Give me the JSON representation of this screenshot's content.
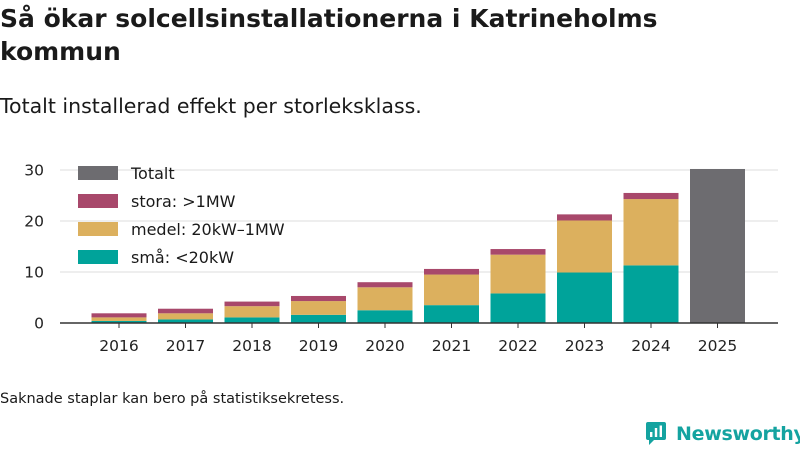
{
  "title": "Så ökar solcellsinstallationerna i Katrineholms kommun",
  "subtitle": "Totalt installerad effekt per storleksklass.",
  "note": "Saknade staplar kan bero på statistiksekretess.",
  "brand": {
    "name": "Newsworthy",
    "icon": "newsworthy-logo-icon"
  },
  "colors": {
    "sma": "#00a39a",
    "medel": "#dcb05e",
    "stora": "#a8486b",
    "totalt": "#6d6c70",
    "grid": "#dddddd",
    "axis": "#333333",
    "brand": "#14a3a0"
  },
  "chart_data": {
    "type": "bar",
    "stacked": true,
    "title": "Så ökar solcellsinstallationerna i Katrineholms kommun",
    "subtitle": "Totalt installerad effekt per storleksklass.",
    "xlabel": "",
    "ylabel": "",
    "ylim": [
      0,
      30
    ],
    "yticks": [
      0,
      10,
      20,
      30
    ],
    "grid": true,
    "legend_position": "top-left",
    "categories": [
      "2016",
      "2017",
      "2018",
      "2019",
      "2020",
      "2021",
      "2022",
      "2023",
      "2024",
      "2025"
    ],
    "series": [
      {
        "name": "Totalt",
        "key": "totalt",
        "values": [
          null,
          null,
          null,
          null,
          null,
          null,
          null,
          null,
          null,
          30.2
        ]
      },
      {
        "name": "stora: >1MW",
        "key": "stora",
        "values": [
          0.8,
          0.9,
          0.9,
          1.0,
          1.0,
          1.1,
          1.1,
          1.2,
          1.2,
          null
        ]
      },
      {
        "name": "medel: 20kW–1MW",
        "key": "medel",
        "values": [
          0.7,
          1.2,
          2.2,
          2.7,
          4.5,
          6.0,
          7.6,
          10.2,
          13.0,
          null
        ]
      },
      {
        "name": "små: <20kW",
        "key": "sma",
        "values": [
          0.4,
          0.7,
          1.1,
          1.6,
          2.5,
          3.5,
          5.8,
          9.9,
          11.3,
          null
        ]
      }
    ]
  }
}
